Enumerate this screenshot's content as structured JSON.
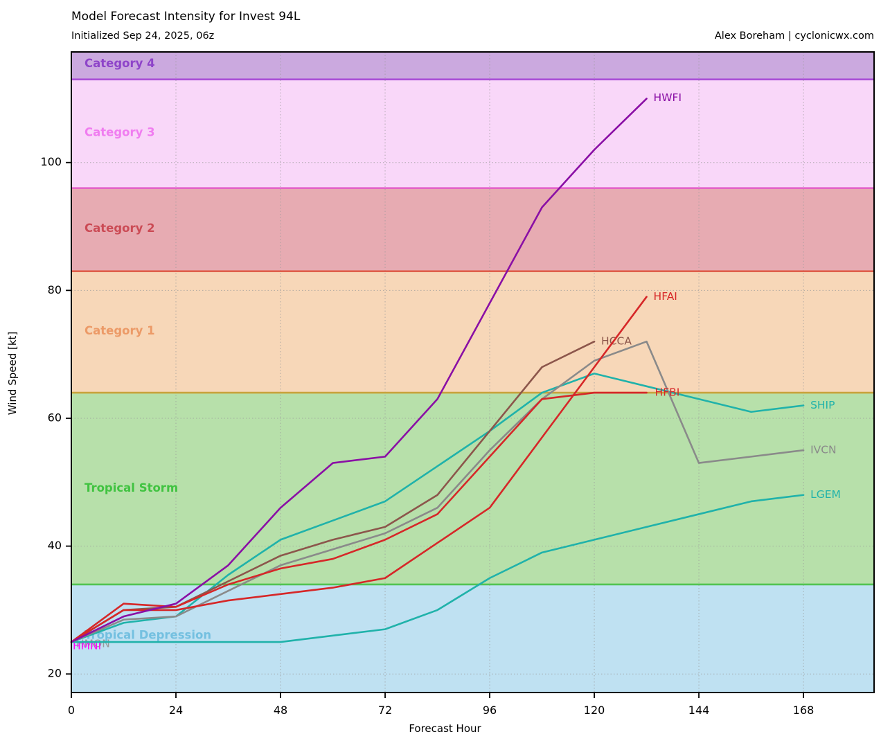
{
  "chart": {
    "title": "Model Forecast Intensity for Invest 94L",
    "subtitle": "Initialized Sep 24, 2025, 06z",
    "credit": "Alex Boreham | cyclonicwx.com"
  },
  "chart_data": {
    "type": "line",
    "title": "Model Forecast Intensity for Invest 94L",
    "subtitle": "Initialized Sep 24, 2025, 06z",
    "xlabel": "Forecast Hour",
    "ylabel": "Wind Speed [kt]",
    "xlim": [
      0,
      184.2
    ],
    "ylim": [
      17.1,
      117.3
    ],
    "x_ticks": [
      0,
      24,
      48,
      72,
      96,
      120,
      144,
      168
    ],
    "y_ticks": [
      20,
      40,
      60,
      80,
      100
    ],
    "grid": "dotted gridlines at major ticks, both axes",
    "legend_position": "labels at line ends",
    "bands": [
      {
        "name": "tropical-depression",
        "label": "Tropical Depression",
        "from": 17.1,
        "to": 34,
        "fill": "#bfe1f2",
        "label_color": "#74c0e0",
        "label_kt": 26.0
      },
      {
        "name": "tropical-storm",
        "label": "Tropical Storm",
        "from": 34,
        "to": 64,
        "fill": "#b7e0aa",
        "label_color": "#41c341",
        "label_kt": 49.0
      },
      {
        "name": "category-1",
        "label": "Category 1",
        "from": 64,
        "to": 83,
        "fill": "#f7d7b8",
        "label_color": "#ec9a67",
        "label_kt": 73.6
      },
      {
        "name": "category-2",
        "label": "Category 2",
        "from": 83,
        "to": 96,
        "fill": "#e7abb2",
        "label_color": "#cb4b55",
        "label_kt": 89.6
      },
      {
        "name": "category-3",
        "label": "Category 3",
        "from": 96,
        "to": 113,
        "fill": "#f9d7f9",
        "label_color": "#f07df0",
        "label_kt": 104.6
      },
      {
        "name": "category-4",
        "label": "Category 4",
        "from": 113,
        "to": 117.3,
        "fill": "#cba9df",
        "label_color": "#8e44c9",
        "label_kt": 115.4
      }
    ],
    "boundaries": [
      {
        "kt": 34,
        "color": "#52c452"
      },
      {
        "kt": 64,
        "color": "#c8a33c"
      },
      {
        "kt": 83,
        "color": "#df5f4b"
      },
      {
        "kt": 96,
        "color": "#e35fc8"
      },
      {
        "kt": 113,
        "color": "#a94fd6"
      }
    ],
    "series": [
      {
        "name": "HMON",
        "color": "#999999",
        "hours": [
          0
        ],
        "values": [
          25
        ],
        "label_dx": 7,
        "label_dy": 3
      },
      {
        "name": "HMNI",
        "color": "#ff00ff",
        "hours": [
          0
        ],
        "values": [
          25
        ],
        "label_dx": 2,
        "label_dy": 6
      },
      {
        "name": "LGEM",
        "color": "#20b2aa",
        "hours": [
          0,
          12,
          24,
          36,
          48,
          60,
          72,
          84,
          96,
          108,
          120,
          132,
          144,
          156,
          168
        ],
        "values": [
          25,
          25,
          25,
          25,
          25,
          26,
          27,
          30,
          35,
          39,
          41,
          43,
          45,
          47,
          48
        ],
        "label_dx": 10,
        "label_dy": 0
      },
      {
        "name": "SHIP",
        "color": "#20b2aa",
        "hours": [
          0,
          12,
          24,
          36,
          48,
          60,
          72,
          84,
          96,
          108,
          120,
          132,
          144,
          156,
          168
        ],
        "values": [
          25,
          28,
          29,
          35.5,
          41,
          44,
          47,
          52.5,
          58,
          64,
          67,
          65,
          63,
          61,
          62
        ],
        "label_dx": 10,
        "label_dy": 0
      },
      {
        "name": "IVCN",
        "color": "#8a8a8a",
        "hours": [
          0,
          12,
          24,
          36,
          48,
          60,
          72,
          84,
          96,
          108,
          120,
          132,
          144,
          156,
          168
        ],
        "values": [
          25,
          28.5,
          29,
          33,
          37,
          39.5,
          42,
          46,
          55,
          63,
          69,
          72,
          53,
          54,
          55
        ],
        "label_dx": 10,
        "label_dy": 0
      },
      {
        "name": "HCCA",
        "color": "#8c564b",
        "hours": [
          0,
          12,
          24,
          36,
          48,
          60,
          72,
          84,
          96,
          108,
          120
        ],
        "values": [
          25,
          30,
          30.5,
          34.5,
          38.5,
          41,
          43,
          48,
          58,
          68,
          72
        ],
        "label_dx": 10,
        "label_dy": 0
      },
      {
        "name": "HFBI",
        "color": "#d62728",
        "hours": [
          0,
          12,
          24,
          36,
          48,
          60,
          72,
          84,
          96,
          108,
          120,
          132
        ],
        "values": [
          25,
          31,
          30.5,
          34,
          36.5,
          38,
          41,
          45,
          54,
          63,
          64,
          64
        ],
        "label_dx": 12,
        "label_dy": 0
      },
      {
        "name": "HFAI",
        "color": "#d62728",
        "hours": [
          0,
          12,
          24,
          36,
          48,
          60,
          72,
          84,
          96,
          108,
          120,
          132
        ],
        "values": [
          25,
          30,
          30,
          31.5,
          32.5,
          33.5,
          35,
          40.5,
          46,
          57,
          68,
          79
        ],
        "label_dx": 10,
        "label_dy": 0
      },
      {
        "name": "HWFI",
        "color": "#8a0fa5",
        "hours": [
          0,
          12,
          24,
          36,
          48,
          60,
          72,
          84,
          96,
          108,
          120,
          132
        ],
        "values": [
          25,
          29,
          31,
          37,
          46,
          53,
          54,
          63,
          78,
          93,
          102,
          110
        ],
        "label_dx": 10,
        "label_dy": -1
      }
    ]
  }
}
